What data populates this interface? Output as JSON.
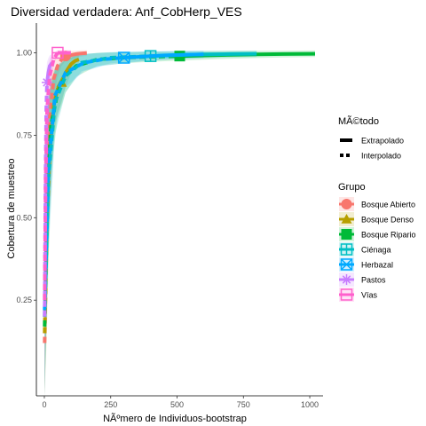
{
  "chart_data": {
    "type": "line",
    "title": "Diversidad verdadera: Anf_CobHerp_VES",
    "xlabel": "NÃºmero de Individuos-bootstrap",
    "ylabel": "Cobertura de muestreo",
    "xlim": [
      -30,
      1050
    ],
    "ylim": [
      -0.04,
      1.09
    ],
    "x_ticks": [
      0,
      250,
      500,
      750,
      1000
    ],
    "x_tick_labels": [
      "0",
      "250",
      "500",
      "750",
      "1000"
    ],
    "y_ticks": [
      0.25,
      0.5,
      0.75,
      1.0
    ],
    "y_tick_labels": [
      "0.25",
      "0.50",
      "0.75",
      "1.00"
    ],
    "grid": false,
    "legend_placement": "right",
    "legend_method_title": "MÃ©todo",
    "legend_group_title": "Grupo",
    "methods": [
      {
        "name": "Extrapolado",
        "dash": "solid"
      },
      {
        "name": "Interpolado",
        "dash": "dashed"
      }
    ],
    "series": [
      {
        "name": "Bosque Abierto",
        "color": "#F8766D",
        "marker": "circle",
        "observed": [
          80,
          0.99
        ],
        "interpolated": {
          "x": [
            1,
            10,
            20,
            35,
            50,
            65,
            80
          ],
          "y": [
            0.12,
            0.55,
            0.8,
            0.92,
            0.96,
            0.98,
            0.99
          ]
        },
        "extrapolated": {
          "x": [
            80,
            100,
            120,
            140,
            160
          ],
          "y": [
            0.99,
            0.993,
            0.996,
            0.998,
            0.999
          ]
        }
      },
      {
        "name": "Bosque Denso",
        "color": "#B79F00",
        "marker": "triangle",
        "observed": [
          65,
          0.91
        ],
        "interpolated": {
          "x": [
            1,
            10,
            20,
            35,
            50,
            65
          ],
          "y": [
            0.15,
            0.48,
            0.7,
            0.84,
            0.89,
            0.91
          ]
        },
        "extrapolated": {
          "x": [
            65,
            80,
            100,
            115,
            130
          ],
          "y": [
            0.91,
            0.94,
            0.965,
            0.975,
            0.98
          ]
        }
      },
      {
        "name": "Bosque Ripario",
        "color": "#00BA38",
        "marker": "square",
        "observed": [
          510,
          0.99
        ],
        "interpolated": {
          "x": [
            1,
            10,
            25,
            50,
            80,
            120,
            200,
            300,
            400,
            510
          ],
          "y": [
            0.17,
            0.55,
            0.78,
            0.88,
            0.93,
            0.96,
            0.98,
            0.985,
            0.988,
            0.99
          ]
        },
        "extrapolated": {
          "x": [
            510,
            650,
            800,
            900,
            1020
          ],
          "y": [
            0.99,
            0.993,
            0.995,
            0.996,
            0.997
          ]
        }
      },
      {
        "name": "Ciénaga",
        "color": "#00BFC4",
        "marker": "square-plus",
        "observed": [
          400,
          0.99
        ],
        "interpolated": {
          "x": [
            1,
            15,
            40,
            80,
            140,
            250,
            400
          ],
          "y": [
            0.2,
            0.62,
            0.85,
            0.93,
            0.97,
            0.985,
            0.99
          ]
        },
        "extrapolated": {
          "x": [
            400,
            500,
            600,
            700,
            800
          ],
          "y": [
            0.99,
            0.993,
            0.995,
            0.996,
            0.997
          ]
        }
      },
      {
        "name": "Herbazal",
        "color": "#00A9FF",
        "marker": "square-x",
        "observed": [
          300,
          0.985
        ],
        "interpolated": {
          "x": [
            1,
            15,
            40,
            80,
            150,
            220,
            300
          ],
          "y": [
            0.22,
            0.65,
            0.87,
            0.94,
            0.97,
            0.98,
            0.985
          ]
        },
        "extrapolated": {
          "x": [
            300,
            400,
            450,
            520,
            600
          ],
          "y": [
            0.985,
            0.99,
            0.992,
            0.994,
            0.995
          ]
        }
      },
      {
        "name": "Pastos",
        "color": "#C77CFF",
        "marker": "asterisk",
        "observed": [
          10,
          0.91
        ],
        "interpolated": {
          "x": [
            1,
            4,
            7,
            10
          ],
          "y": [
            0.2,
            0.6,
            0.83,
            0.91
          ]
        },
        "extrapolated": {
          "x": [
            10,
            15,
            20,
            25,
            30
          ],
          "y": [
            0.91,
            0.94,
            0.96,
            0.965,
            0.97
          ]
        }
      },
      {
        "name": "Vías",
        "color": "#FF61CC",
        "marker": "square-minus",
        "observed": [
          50,
          1.0
        ],
        "interpolated": {
          "x": [
            1,
            5,
            10,
            20,
            35,
            50
          ],
          "y": [
            0.25,
            0.62,
            0.82,
            0.93,
            0.98,
            1.0
          ]
        },
        "extrapolated": {
          "x": [
            50,
            65,
            80,
            90,
            100
          ],
          "y": [
            1.0,
            1.0,
            1.0,
            1.0,
            1.0
          ]
        }
      }
    ]
  }
}
